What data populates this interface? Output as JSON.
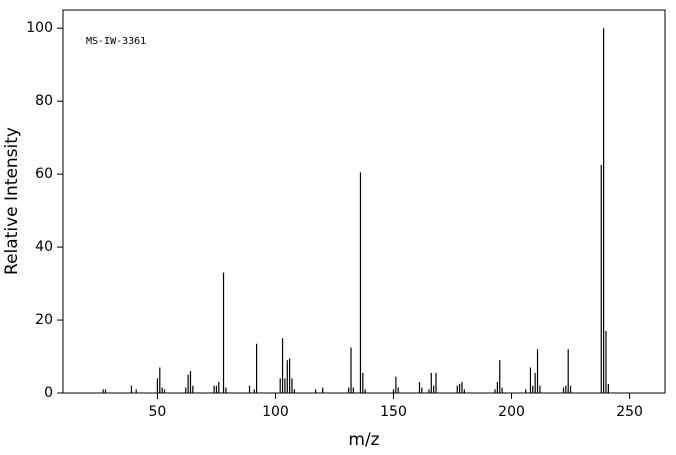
{
  "chart_data": {
    "type": "bar",
    "annotation": "MS-IW-3361",
    "x_label": "m/z",
    "y_label": "Relative Intensity",
    "x": [
      27,
      28,
      39,
      41,
      50,
      51,
      52,
      53,
      62,
      63,
      64,
      65,
      74,
      75,
      76,
      78,
      79,
      89,
      91,
      92,
      102,
      103,
      104,
      105,
      106,
      107,
      108,
      117,
      120,
      131,
      132,
      133,
      136,
      137,
      138,
      150,
      151,
      152,
      161,
      162,
      165,
      166,
      167,
      168,
      177,
      178,
      179,
      180,
      193,
      194,
      195,
      196,
      206,
      208,
      209,
      210,
      211,
      212,
      222,
      223,
      224,
      225,
      238,
      239,
      240,
      241
    ],
    "values": [
      1,
      1,
      2,
      1,
      4,
      7,
      1.5,
      1,
      1.5,
      5,
      6,
      2,
      2,
      2,
      3,
      33,
      1.5,
      2,
      1,
      13.5,
      4,
      15,
      4,
      9,
      9.5,
      4,
      1,
      1,
      1.5,
      1.5,
      12.5,
      1.5,
      60.5,
      5.5,
      1,
      1,
      4.5,
      1.5,
      3,
      1.5,
      1,
      5.5,
      2,
      5.5,
      2,
      2.5,
      3,
      1,
      1,
      3,
      9,
      1.5,
      1,
      7,
      2,
      5.5,
      12,
      2,
      1.5,
      2,
      12,
      2,
      62.5,
      100,
      17,
      2.5
    ],
    "color": "#000000",
    "xlim": [
      10,
      265
    ],
    "ylim": [
      0,
      105
    ],
    "xticks": [
      50,
      100,
      150,
      200,
      250
    ],
    "yticks": [
      0,
      20,
      40,
      60,
      80,
      100
    ]
  }
}
